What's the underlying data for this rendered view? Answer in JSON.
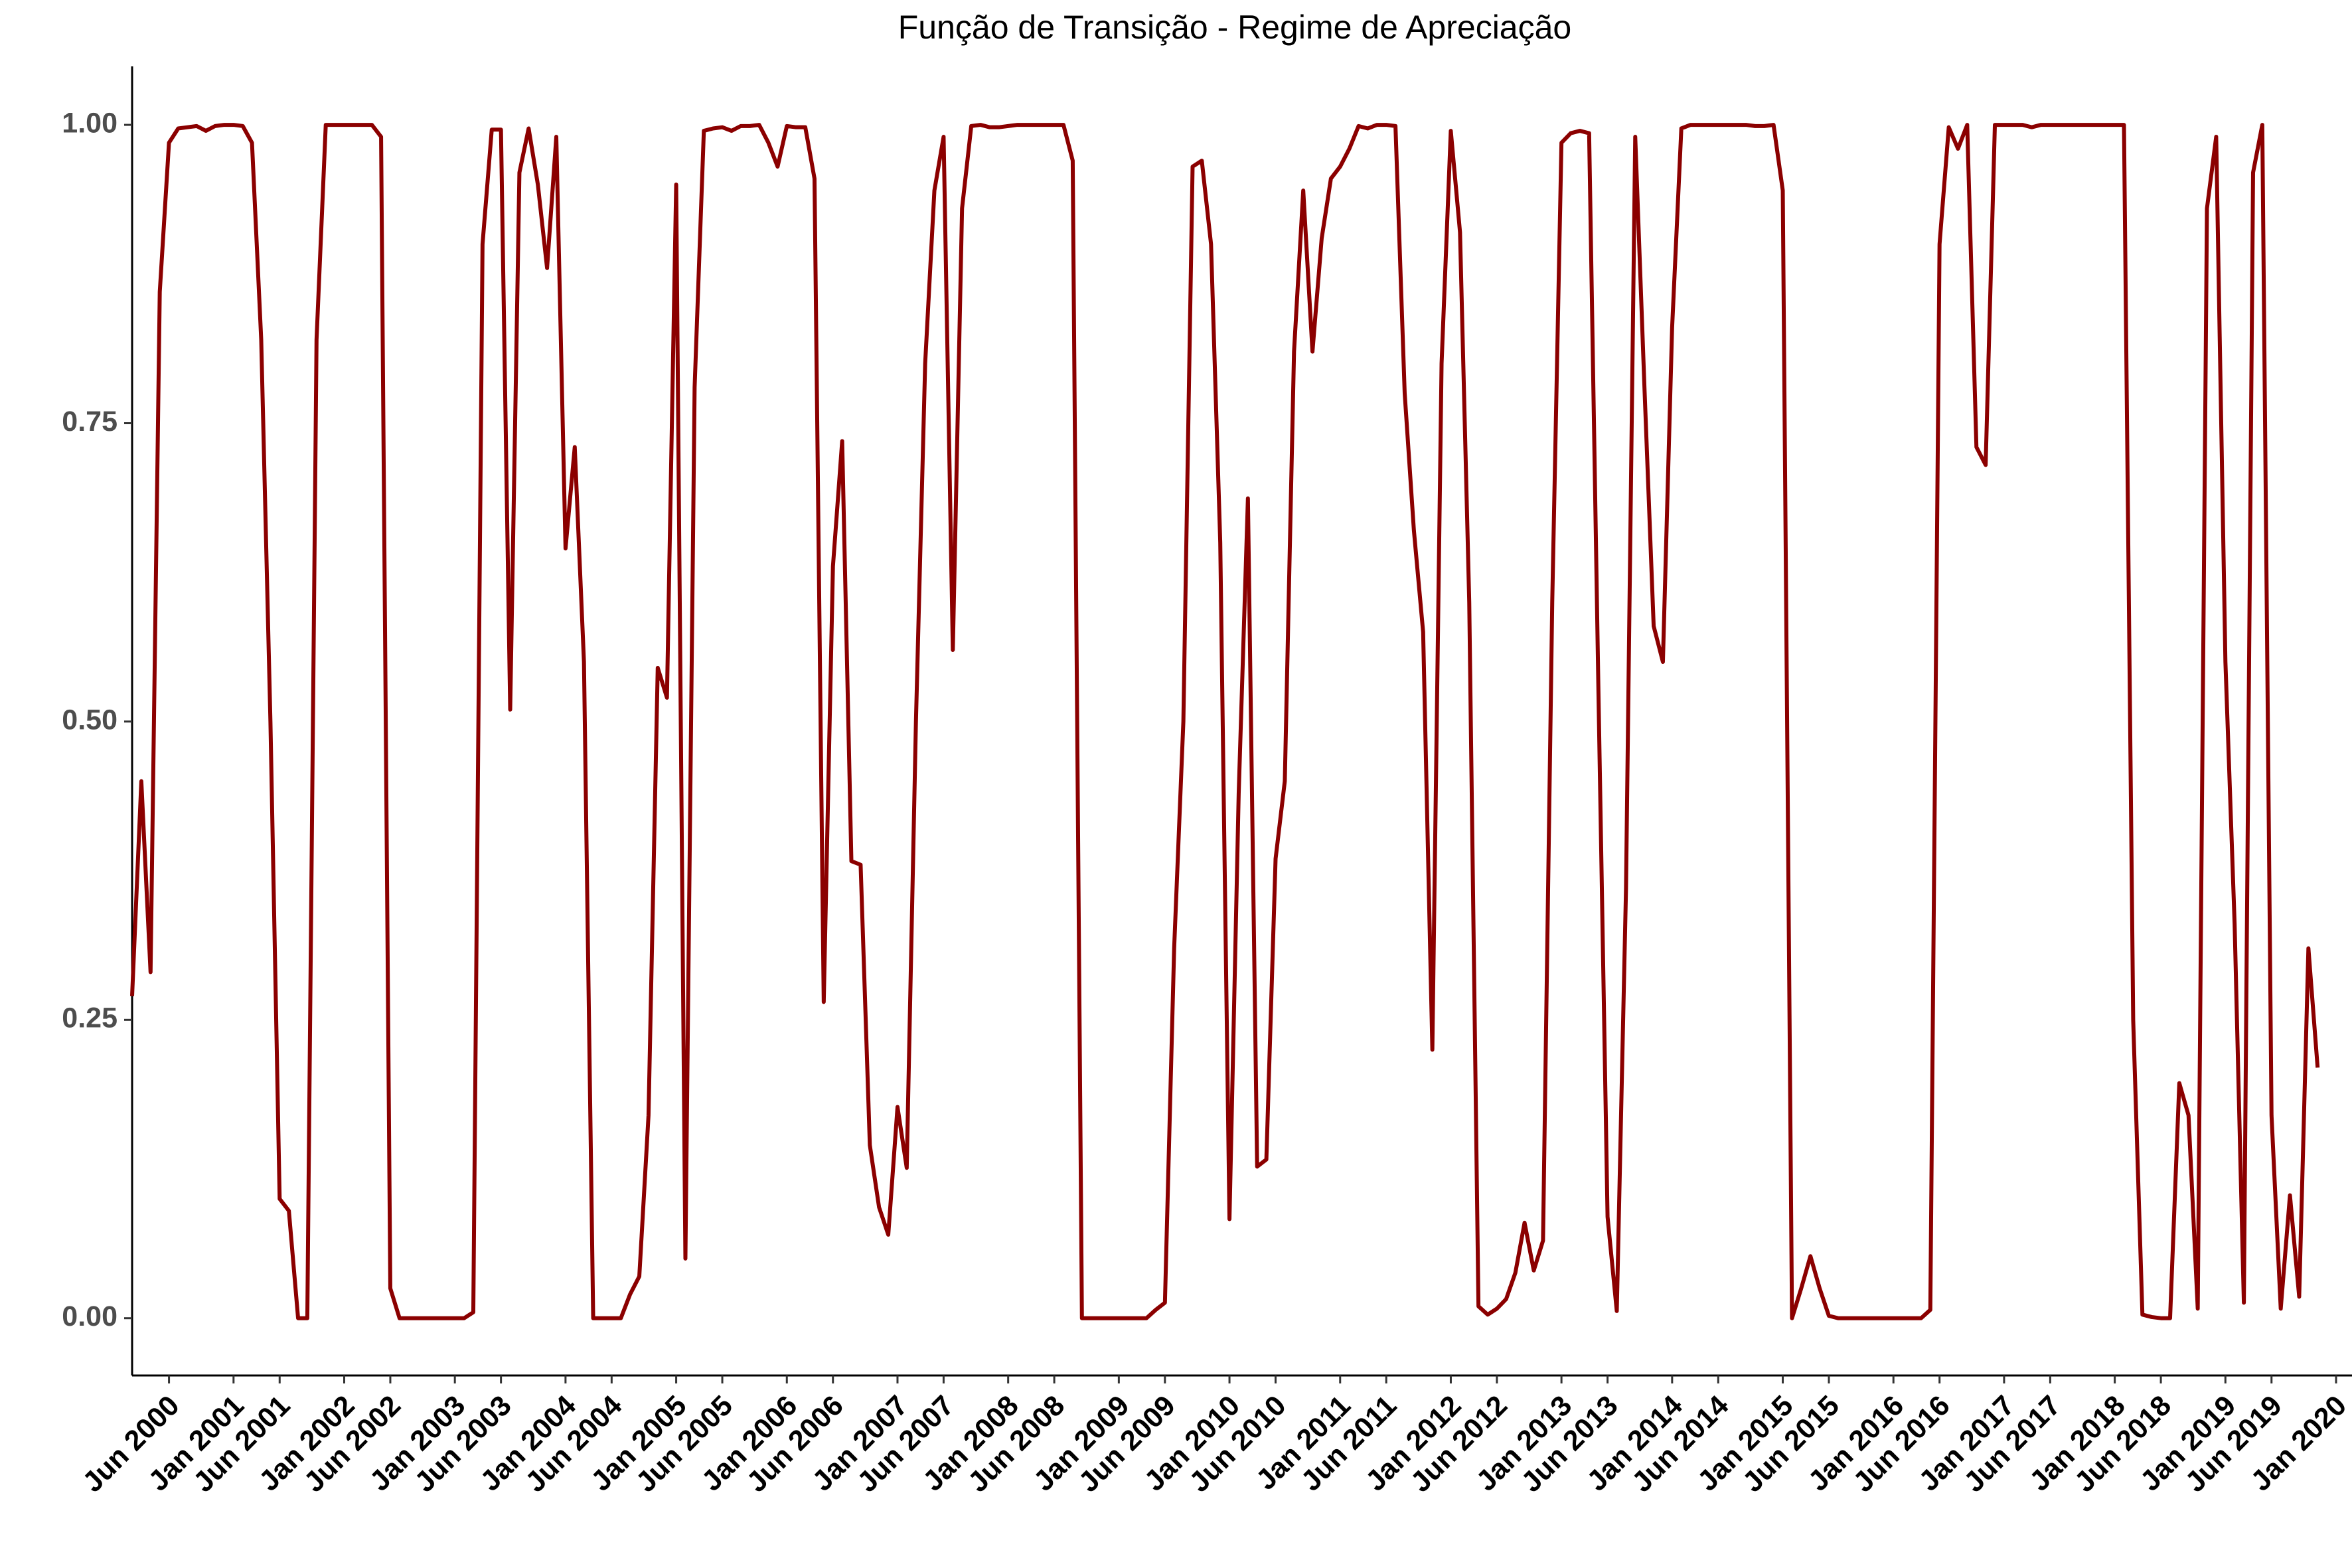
{
  "chart_data": {
    "type": "line",
    "title": "Função de Transição - Regime de Apreciação",
    "color": "#8b0000",
    "x": [
      "2000-02",
      "2000-03",
      "2000-04",
      "2000-05",
      "2000-06",
      "2000-07",
      "2000-08",
      "2000-09",
      "2000-10",
      "2000-11",
      "2000-12",
      "2001-01",
      "2001-02",
      "2001-03",
      "2001-04",
      "2001-05",
      "2001-06",
      "2001-07",
      "2001-08",
      "2001-09",
      "2001-10",
      "2001-11",
      "2001-12",
      "2002-01",
      "2002-02",
      "2002-03",
      "2002-04",
      "2002-05",
      "2002-06",
      "2002-07",
      "2002-08",
      "2002-09",
      "2002-10",
      "2002-11",
      "2002-12",
      "2003-01",
      "2003-02",
      "2003-03",
      "2003-04",
      "2003-05",
      "2003-06",
      "2003-07",
      "2003-08",
      "2003-09",
      "2003-10",
      "2003-11",
      "2003-12",
      "2004-01",
      "2004-02",
      "2004-03",
      "2004-04",
      "2004-05",
      "2004-06",
      "2004-07",
      "2004-08",
      "2004-09",
      "2004-10",
      "2004-11",
      "2004-12",
      "2005-01",
      "2005-02",
      "2005-03",
      "2005-04",
      "2005-05",
      "2005-06",
      "2005-07",
      "2005-08",
      "2005-09",
      "2005-10",
      "2005-11",
      "2005-12",
      "2006-01",
      "2006-02",
      "2006-03",
      "2006-04",
      "2006-05",
      "2006-06",
      "2006-07",
      "2006-08",
      "2006-09",
      "2006-10",
      "2006-11",
      "2006-12",
      "2007-01",
      "2007-02",
      "2007-03",
      "2007-04",
      "2007-05",
      "2007-06",
      "2007-07",
      "2007-08",
      "2007-09",
      "2007-10",
      "2007-11",
      "2007-12",
      "2008-01",
      "2008-02",
      "2008-03",
      "2008-04",
      "2008-05",
      "2008-06",
      "2008-07",
      "2008-08",
      "2008-09",
      "2008-10",
      "2008-11",
      "2008-12",
      "2009-01",
      "2009-02",
      "2009-03",
      "2009-04",
      "2009-05",
      "2009-06",
      "2009-07",
      "2009-08",
      "2009-09",
      "2009-10",
      "2009-11",
      "2009-12",
      "2010-01",
      "2010-02",
      "2010-03",
      "2010-04",
      "2010-05",
      "2010-06",
      "2010-07",
      "2010-08",
      "2010-09",
      "2010-10",
      "2010-11",
      "2010-12",
      "2011-01",
      "2011-02",
      "2011-03",
      "2011-04",
      "2011-05",
      "2011-06",
      "2011-07",
      "2011-08",
      "2011-09",
      "2011-10",
      "2011-11",
      "2011-12",
      "2012-01",
      "2012-02",
      "2012-03",
      "2012-04",
      "2012-05",
      "2012-06",
      "2012-07",
      "2012-08",
      "2012-09",
      "2012-10",
      "2012-11",
      "2012-12",
      "2013-01",
      "2013-02",
      "2013-03",
      "2013-04",
      "2013-05",
      "2013-06",
      "2013-07",
      "2013-08",
      "2013-09",
      "2013-10",
      "2013-11",
      "2013-12",
      "2014-01",
      "2014-02",
      "2014-03",
      "2014-04",
      "2014-05",
      "2014-06",
      "2014-07",
      "2014-08",
      "2014-09",
      "2014-10",
      "2014-11",
      "2014-12",
      "2015-01",
      "2015-02",
      "2015-03",
      "2015-04",
      "2015-05",
      "2015-06",
      "2015-07",
      "2015-08",
      "2015-09",
      "2015-10",
      "2015-11",
      "2015-12",
      "2016-01",
      "2016-02",
      "2016-03",
      "2016-04",
      "2016-05",
      "2016-06",
      "2016-07",
      "2016-08",
      "2016-09",
      "2016-10",
      "2016-11",
      "2016-12",
      "2017-01",
      "2017-02",
      "2017-03",
      "2017-04",
      "2017-05",
      "2017-06",
      "2017-07",
      "2017-08",
      "2017-09",
      "2017-10",
      "2017-11",
      "2017-12",
      "2018-01",
      "2018-02",
      "2018-03",
      "2018-04",
      "2018-05",
      "2018-06",
      "2018-07",
      "2018-08",
      "2018-09",
      "2018-10",
      "2018-11",
      "2018-12",
      "2019-01",
      "2019-02",
      "2019-03",
      "2019-04",
      "2019-05",
      "2019-06",
      "2019-07",
      "2019-08",
      "2019-09",
      "2019-10",
      "2019-11"
    ],
    "values": [
      0.27,
      0.45,
      0.29,
      0.86,
      0.985,
      0.997,
      0.998,
      0.999,
      0.995,
      0.999,
      1,
      1,
      0.999,
      0.985,
      0.82,
      0.5,
      0.1,
      0.09,
      0,
      0,
      0.82,
      1,
      1,
      1,
      1,
      1,
      1,
      0.99,
      0.025,
      0,
      0,
      0,
      0,
      0,
      0,
      0,
      0,
      0.005,
      0.9,
      0.996,
      0.996,
      0.51,
      0.96,
      0.997,
      0.95,
      0.88,
      0.99,
      0.645,
      0.73,
      0.55,
      0,
      0,
      0,
      0,
      0.02,
      0.035,
      0.17,
      0.545,
      0.52,
      0.95,
      0.05,
      0.78,
      0.995,
      0.997,
      0.998,
      0.995,
      0.999,
      0.999,
      1,
      0.985,
      0.965,
      0.999,
      0.998,
      0.998,
      0.955,
      0.265,
      0.63,
      0.735,
      0.383,
      0.38,
      0.145,
      0.093,
      0.07,
      0.177,
      0.126,
      0.5,
      0.8,
      0.945,
      0.99,
      0.56,
      0.93,
      0.999,
      1,
      0.998,
      0.998,
      0.999,
      1,
      1,
      1,
      1,
      1,
      1,
      0.97,
      0,
      0,
      0,
      0,
      0,
      0,
      0,
      0,
      0.007,
      0.013,
      0.31,
      0.5,
      0.965,
      0.97,
      0.9,
      0.65,
      0.083,
      0.44,
      0.687,
      0.127,
      0.133,
      0.385,
      0.45,
      0.81,
      0.945,
      0.81,
      0.905,
      0.955,
      0.965,
      0.98,
      0.999,
      0.997,
      1,
      1,
      0.999,
      0.775,
      0.66,
      0.575,
      0.225,
      0.8,
      0.995,
      0.91,
      0.6,
      0.01,
      0.003,
      0.008,
      0.016,
      0.038,
      0.08,
      0.04,
      0.065,
      0.6,
      0.985,
      0.993,
      0.995,
      0.993,
      0.53,
      0.085,
      0.006,
      0.36,
      0.99,
      0.78,
      0.58,
      0.55,
      0.83,
      0.997,
      1,
      1,
      1,
      1,
      1,
      1,
      1,
      0.999,
      0.999,
      1,
      0.945,
      0,
      0.025,
      0.052,
      0.025,
      0.002,
      0,
      0,
      0,
      0,
      0,
      0,
      0,
      0,
      0,
      0,
      0.007,
      0.9,
      0.998,
      0.98,
      1,
      0.73,
      0.715,
      1,
      1,
      1,
      1,
      0.998,
      1,
      1,
      1,
      1,
      1,
      1,
      1,
      1,
      1,
      1,
      0.25,
      0.003,
      0.001,
      0,
      0,
      0.197,
      0.17,
      0.008,
      0.93,
      0.99,
      0.55,
      0.33,
      0.013,
      0.96,
      1,
      0.17,
      0.008,
      0.103,
      0.018,
      0.31,
      0.21
    ],
    "xlim": [
      "2000-02",
      "2020-01"
    ],
    "xticks": [
      {
        "value": "2000-06",
        "label": "Jun 2000"
      },
      {
        "value": "2001-01",
        "label": "Jan 2001"
      },
      {
        "value": "2001-06",
        "label": "Jun 2001"
      },
      {
        "value": "2002-01",
        "label": "Jan 2002"
      },
      {
        "value": "2002-06",
        "label": "Jun 2002"
      },
      {
        "value": "2003-01",
        "label": "Jan 2003"
      },
      {
        "value": "2003-06",
        "label": "Jun 2003"
      },
      {
        "value": "2004-01",
        "label": "Jan 2004"
      },
      {
        "value": "2004-06",
        "label": "Jun 2004"
      },
      {
        "value": "2005-01",
        "label": "Jan 2005"
      },
      {
        "value": "2005-06",
        "label": "Jun 2005"
      },
      {
        "value": "2006-01",
        "label": "Jan 2006"
      },
      {
        "value": "2006-06",
        "label": "Jun 2006"
      },
      {
        "value": "2007-01",
        "label": "Jan 2007"
      },
      {
        "value": "2007-06",
        "label": "Jun 2007"
      },
      {
        "value": "2008-01",
        "label": "Jan 2008"
      },
      {
        "value": "2008-06",
        "label": "Jun 2008"
      },
      {
        "value": "2009-01",
        "label": "Jan 2009"
      },
      {
        "value": "2009-06",
        "label": "Jun 2009"
      },
      {
        "value": "2010-01",
        "label": "Jan 2010"
      },
      {
        "value": "2010-06",
        "label": "Jun 2010"
      },
      {
        "value": "2011-01",
        "label": "Jan 2011"
      },
      {
        "value": "2011-06",
        "label": "Jun 2011"
      },
      {
        "value": "2012-01",
        "label": "Jan 2012"
      },
      {
        "value": "2012-06",
        "label": "Jun 2012"
      },
      {
        "value": "2013-01",
        "label": "Jan 2013"
      },
      {
        "value": "2013-06",
        "label": "Jun 2013"
      },
      {
        "value": "2014-01",
        "label": "Jan 2014"
      },
      {
        "value": "2014-06",
        "label": "Jun 2014"
      },
      {
        "value": "2015-01",
        "label": "Jan 2015"
      },
      {
        "value": "2015-06",
        "label": "Jun 2015"
      },
      {
        "value": "2016-01",
        "label": "Jan 2016"
      },
      {
        "value": "2016-06",
        "label": "Jun 2016"
      },
      {
        "value": "2017-01",
        "label": "Jan 2017"
      },
      {
        "value": "2017-06",
        "label": "Jun 2017"
      },
      {
        "value": "2018-01",
        "label": "Jan 2018"
      },
      {
        "value": "2018-06",
        "label": "Jun 2018"
      },
      {
        "value": "2019-01",
        "label": "Jan 2019"
      },
      {
        "value": "2019-06",
        "label": "Jun 2019"
      },
      {
        "value": "2020-01",
        "label": "Jan 2020"
      }
    ],
    "ylim": [
      -0.048,
      1.049
    ],
    "yticks": [
      {
        "value": 0,
        "label": "0.00"
      },
      {
        "value": 0.25,
        "label": "0.25"
      },
      {
        "value": 0.5,
        "label": "0.50"
      },
      {
        "value": 0.75,
        "label": "0.75"
      },
      {
        "value": 1,
        "label": "1.00"
      }
    ],
    "grid": false
  }
}
